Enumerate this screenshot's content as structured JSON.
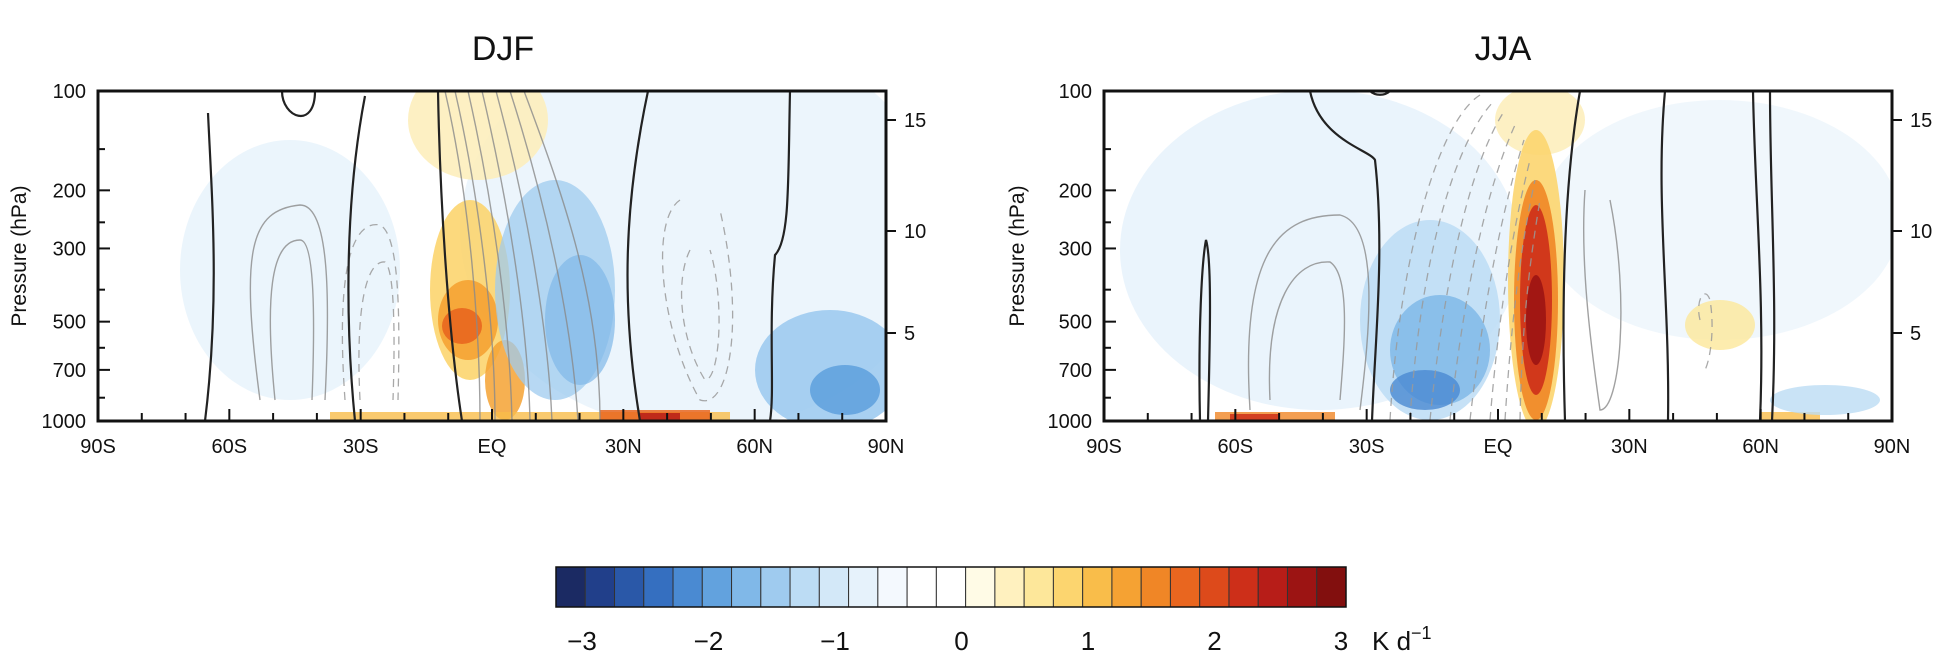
{
  "chart_data": [
    {
      "type": "heatmap",
      "title": "DJF",
      "ylabel": "Pressure (hPa)",
      "x_ticks": [
        "90S",
        "60S",
        "30S",
        "EQ",
        "30N",
        "60N",
        "90N"
      ],
      "y_ticks": [
        "100",
        "200",
        "300",
        "500",
        "700",
        "1000"
      ],
      "y2_ticks": [
        "15",
        "10",
        "5"
      ],
      "xlim": [
        -90,
        90
      ],
      "ylim": [
        1000,
        100
      ],
      "heating_features": [
        {
          "lat": -5,
          "p": 500,
          "value": 1.8,
          "sign": "heating"
        },
        {
          "lat": 2,
          "p": 900,
          "value": 1.7,
          "sign": "heating"
        },
        {
          "lat": -2,
          "p": 150,
          "value": 0.6,
          "sign": "heating"
        },
        {
          "lat": 10,
          "p": 450,
          "value": -1.2,
          "sign": "cooling"
        },
        {
          "lat": 85,
          "p": 850,
          "value": -2.2,
          "sign": "cooling"
        },
        {
          "lat": 20,
          "p": 995,
          "value": 2.4,
          "sign": "heating"
        }
      ]
    },
    {
      "type": "heatmap",
      "title": "JJA",
      "ylabel": "Pressure (hPa)",
      "x_ticks": [
        "90S",
        "60S",
        "30S",
        "EQ",
        "30N",
        "60N",
        "90N"
      ],
      "y_ticks": [
        "100",
        "200",
        "300",
        "500",
        "700",
        "1000"
      ],
      "y2_ticks": [
        "15",
        "10",
        "5"
      ],
      "xlim": [
        -90,
        90
      ],
      "ylim": [
        1000,
        100
      ],
      "heating_features": [
        {
          "lat": 10,
          "p": 500,
          "value": 3.0,
          "sign": "heating"
        },
        {
          "lat": -15,
          "p": 700,
          "value": -2.0,
          "sign": "cooling"
        },
        {
          "lat": 9,
          "p": 150,
          "value": 0.7,
          "sign": "heating"
        },
        {
          "lat": 50,
          "p": 550,
          "value": 0.6,
          "sign": "heating"
        },
        {
          "lat": -62,
          "p": 995,
          "value": 2.0,
          "sign": "heating"
        }
      ]
    }
  ],
  "colorbar": {
    "ticks": [
      "−3",
      "−2",
      "−1",
      "0",
      "1",
      "2",
      "3"
    ],
    "unit_main": "K d",
    "unit_sup": "−1",
    "range": [
      -3,
      3
    ],
    "colors": [
      "#1b2a63",
      "#213f8a",
      "#2a58a8",
      "#356fc0",
      "#4a8ad2",
      "#62a2de",
      "#80b8e8",
      "#9fcbef",
      "#bcdcf4",
      "#d3e8f8",
      "#e6f2fb",
      "#f4f9fe",
      "#ffffff",
      "#ffffff",
      "#fffbe6",
      "#fff1bf",
      "#fde79a",
      "#fcd56f",
      "#f9bd4a",
      "#f5a233",
      "#f08626",
      "#e9661f",
      "#dd4a1b",
      "#cd2f19",
      "#b71d18",
      "#9c1413",
      "#820f0e"
    ]
  }
}
